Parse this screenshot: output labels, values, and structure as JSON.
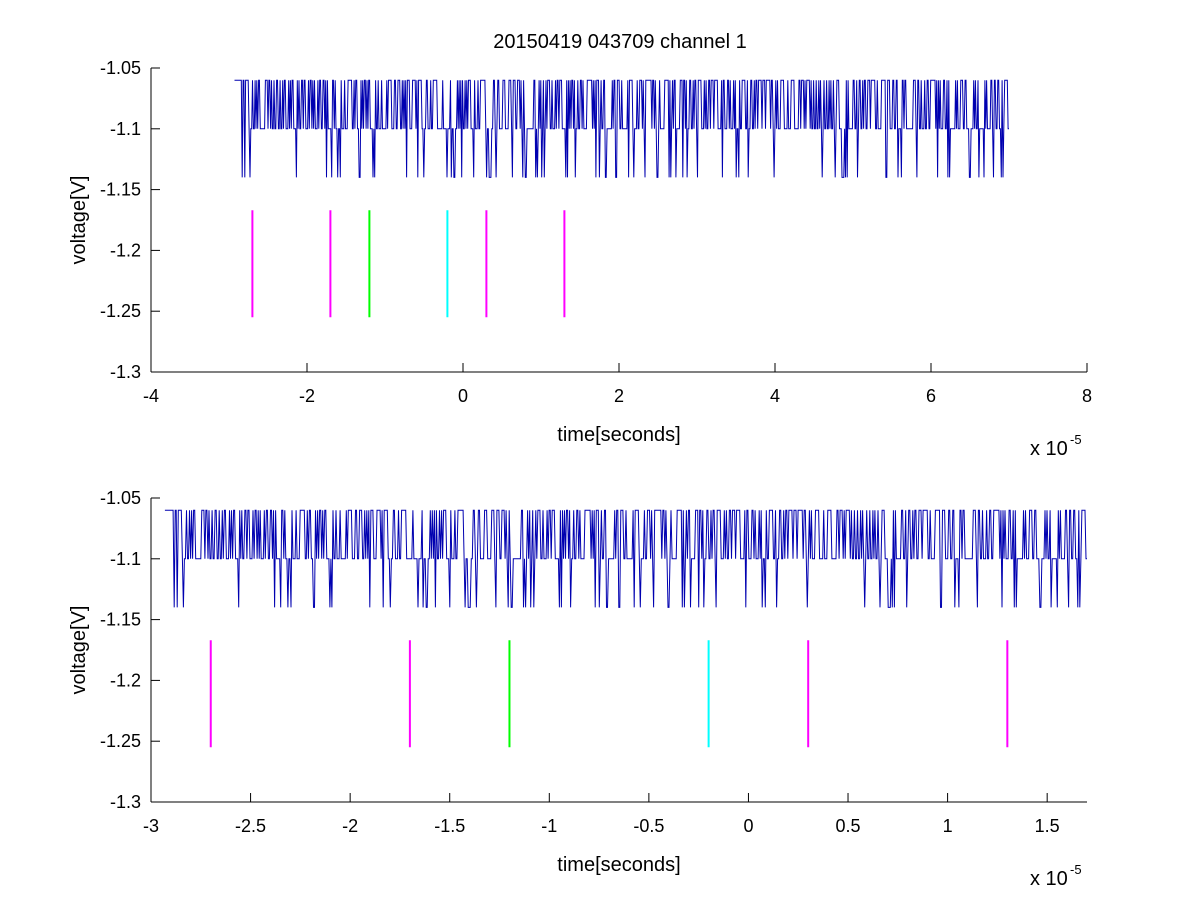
{
  "title": "20150419 043709 channel 1",
  "colors": {
    "signal": "#0000b0",
    "magenta": "#ff00ff",
    "green": "#00ff00",
    "cyan": "#00ffff",
    "axis": "#000000",
    "background": "#ffffff"
  },
  "chart_data": [
    {
      "type": "line",
      "title": "20150419 043709 channel 1",
      "xlabel": "time[seconds]",
      "ylabel": "voltage[V]",
      "x_multiplier": "x 10",
      "x_exponent": "-5",
      "xlim": [
        -4,
        8
      ],
      "ylim": [
        -1.3,
        -1.05
      ],
      "xticks": [
        "-4",
        "-2",
        "0",
        "2",
        "4",
        "6",
        "8"
      ],
      "yticks": [
        "-1.05",
        "-1.1",
        "-1.15",
        "-1.2",
        "-1.25",
        "-1.3"
      ],
      "grid": false,
      "series": [
        {
          "x_range": [
            -2.93,
            7.0
          ],
          "levels": [
            -1.06,
            -1.1,
            -1.14
          ],
          "note_style": "digitized noise"
        }
      ],
      "markers": [
        {
          "x": -2.7,
          "y0": -1.167,
          "y1": -1.255,
          "color": "magenta"
        },
        {
          "x": -1.7,
          "y0": -1.167,
          "y1": -1.255,
          "color": "magenta"
        },
        {
          "x": -1.2,
          "y0": -1.167,
          "y1": -1.255,
          "color": "green"
        },
        {
          "x": -0.2,
          "y0": -1.167,
          "y1": -1.255,
          "color": "cyan"
        },
        {
          "x": 0.3,
          "y0": -1.167,
          "y1": -1.255,
          "color": "magenta"
        },
        {
          "x": 1.3,
          "y0": -1.167,
          "y1": -1.255,
          "color": "magenta"
        }
      ]
    },
    {
      "type": "line",
      "xlabel": "time[seconds]",
      "ylabel": "voltage[V]",
      "x_multiplier": "x 10",
      "x_exponent": "-5",
      "xlim": [
        -3.0,
        1.7
      ],
      "ylim": [
        -1.3,
        -1.05
      ],
      "xticks": [
        "-3",
        "-2.5",
        "-2",
        "-1.5",
        "-1",
        "-0.5",
        "0",
        "0.5",
        "1",
        "1.5"
      ],
      "yticks": [
        "-1.05",
        "-1.1",
        "-1.15",
        "-1.2",
        "-1.25",
        "-1.3"
      ],
      "grid": false,
      "series": [
        {
          "x_range": [
            -2.93,
            1.7
          ],
          "levels": [
            -1.06,
            -1.1,
            -1.14
          ],
          "note_style": "digitized noise"
        }
      ],
      "markers": [
        {
          "x": -2.7,
          "y0": -1.167,
          "y1": -1.255,
          "color": "magenta"
        },
        {
          "x": -1.7,
          "y0": -1.167,
          "y1": -1.255,
          "color": "magenta"
        },
        {
          "x": -1.2,
          "y0": -1.167,
          "y1": -1.255,
          "color": "green"
        },
        {
          "x": -0.2,
          "y0": -1.167,
          "y1": -1.255,
          "color": "cyan"
        },
        {
          "x": 0.3,
          "y0": -1.167,
          "y1": -1.255,
          "color": "magenta"
        },
        {
          "x": 1.3,
          "y0": -1.167,
          "y1": -1.255,
          "color": "magenta"
        }
      ]
    }
  ]
}
